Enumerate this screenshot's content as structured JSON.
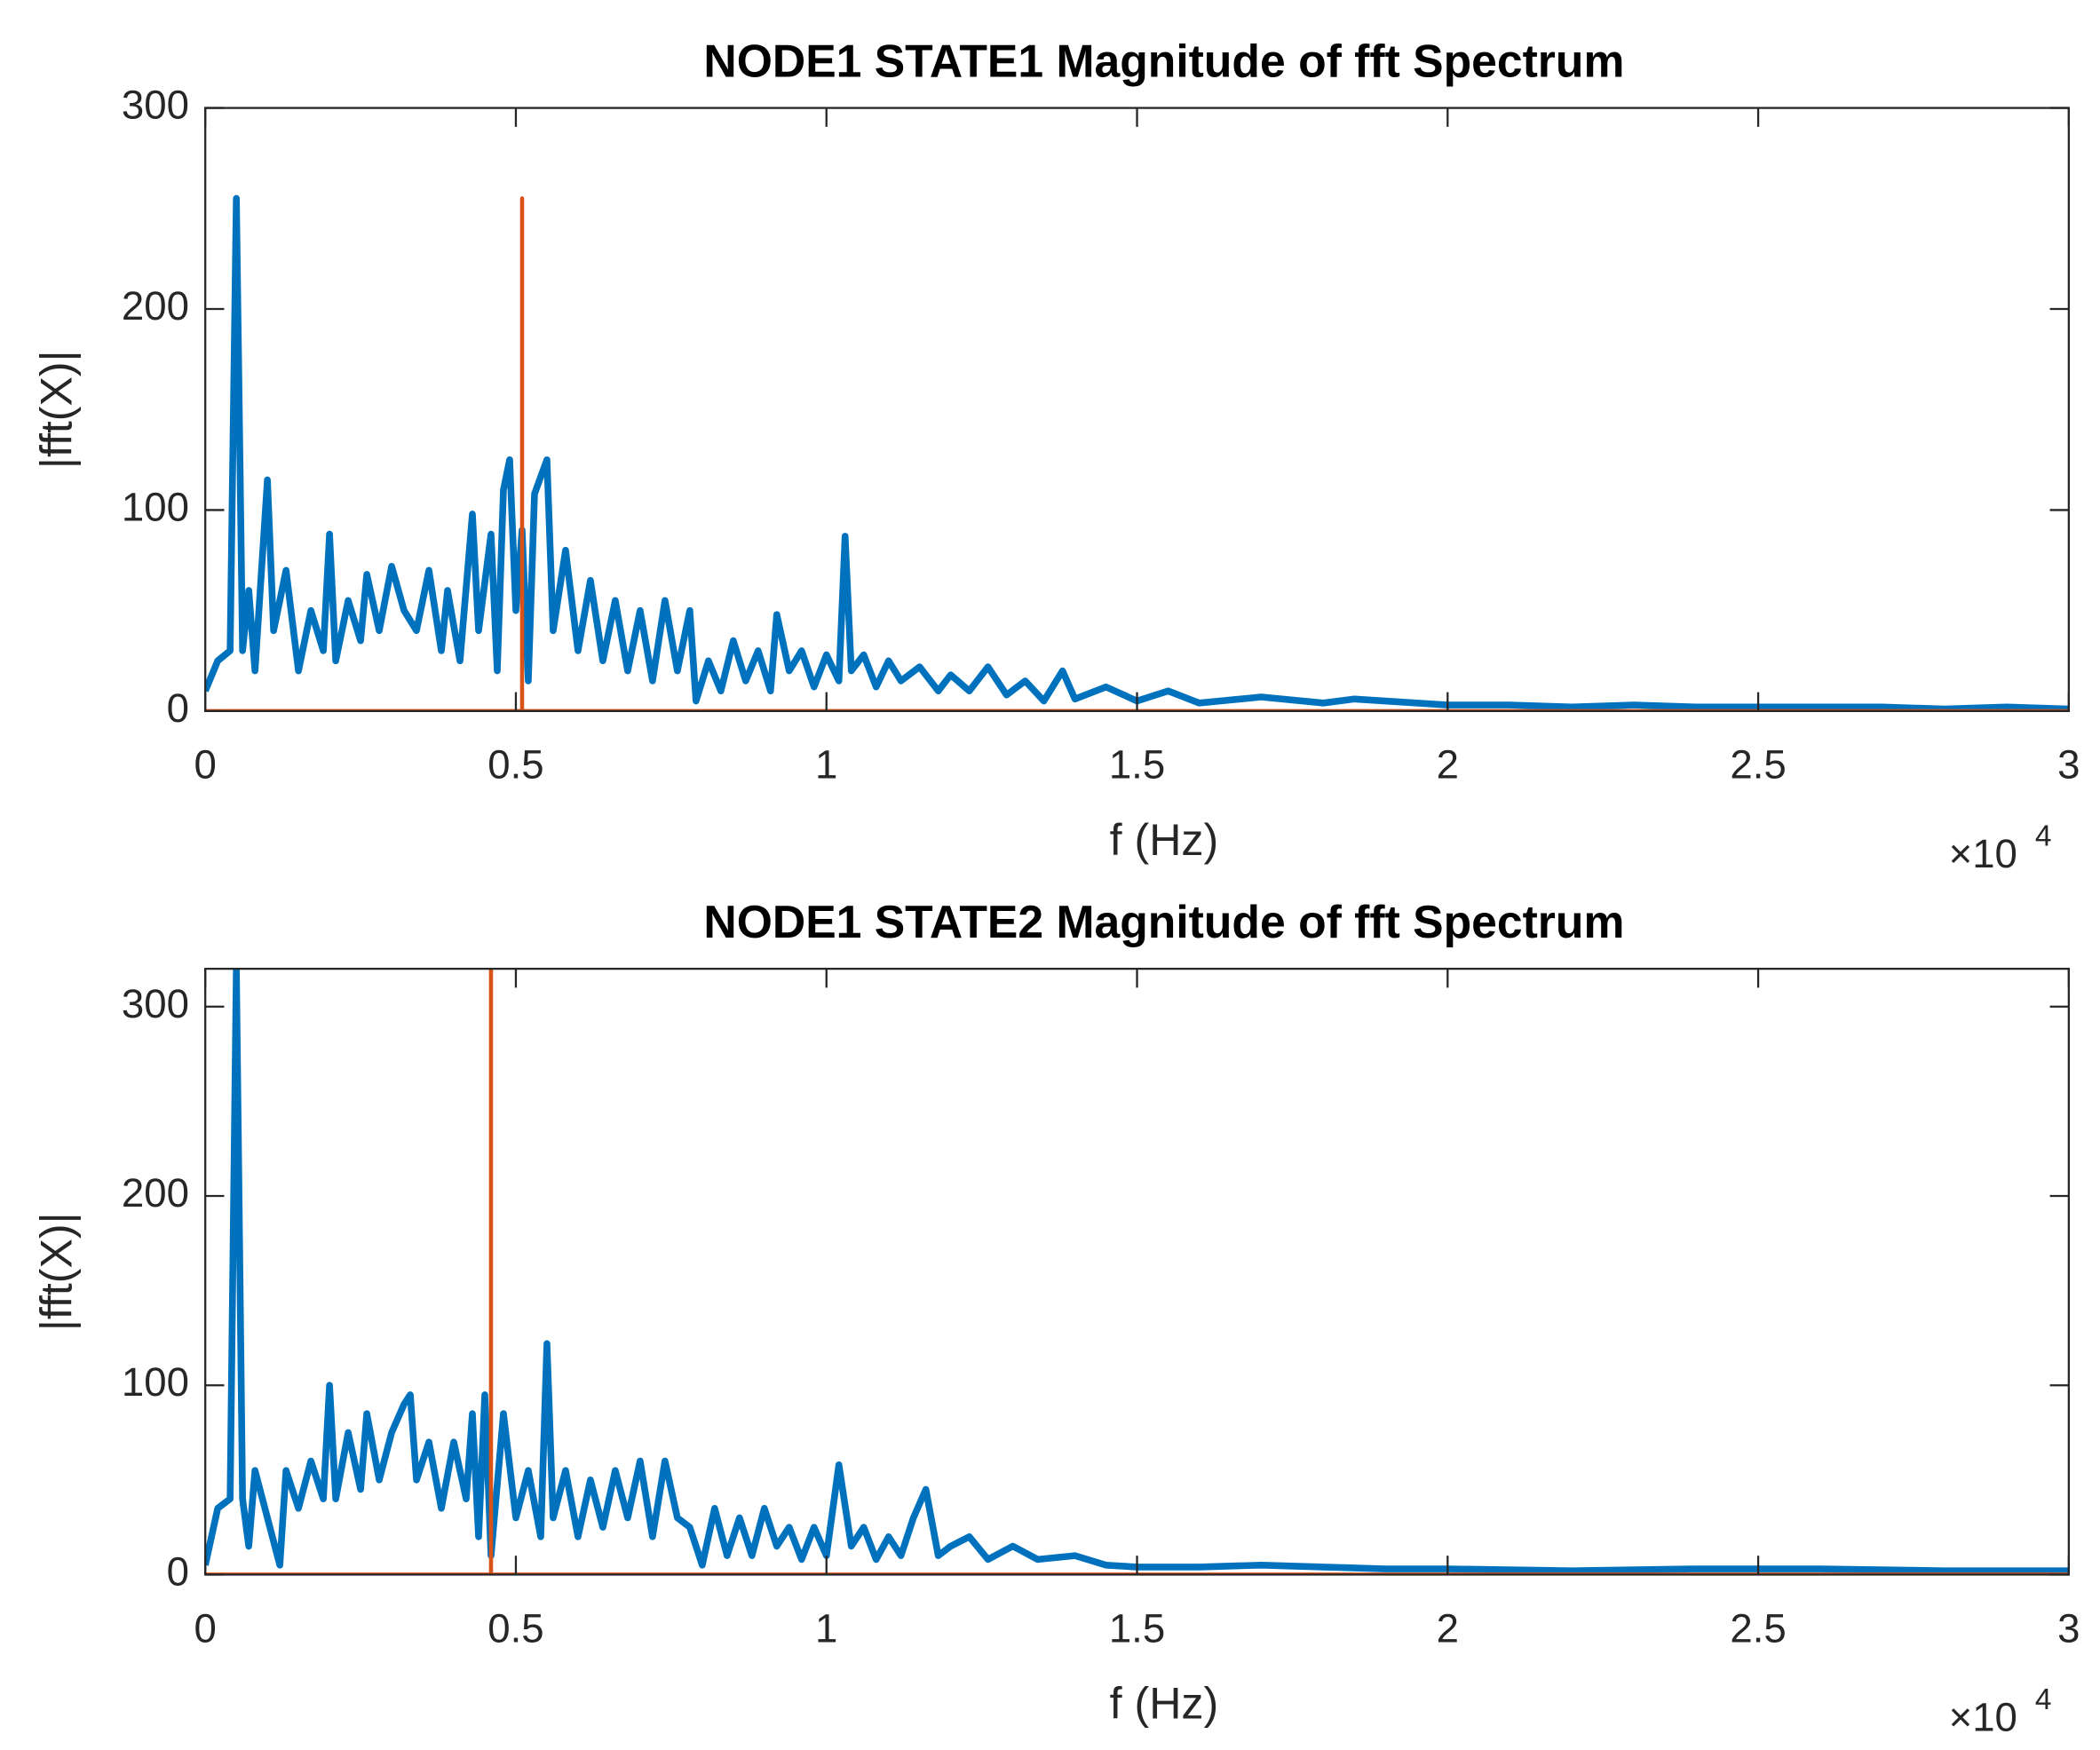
{
  "chart_data": [
    {
      "type": "line",
      "title": "NODE1 STATE1 Magnitude of fft Spectrum",
      "x_label": "f (Hz)",
      "y_label": "|fft(X)|",
      "x_multiplier": "×10",
      "x_exponent": "4",
      "xlim": [
        0,
        30000
      ],
      "ylim": [
        0,
        300
      ],
      "xticks": [
        0,
        {
          "value": 5000,
          "label": "0.5"
        },
        {
          "value": 10000,
          "label": "1"
        },
        {
          "value": 15000,
          "label": "1.5"
        },
        {
          "value": 20000,
          "label": "2"
        },
        {
          "value": 25000,
          "label": "2.5"
        },
        {
          "value": 30000,
          "label": "3"
        }
      ],
      "yticks": [
        0,
        100,
        200,
        300
      ],
      "series": [
        {
          "color": "#0072BD",
          "x": [
            0,
            200,
            400,
            500,
            600,
            700,
            800,
            1000,
            1100,
            1300,
            1500,
            1700,
            1900,
            2000,
            2100,
            2300,
            2500,
            2600,
            2800,
            3000,
            3200,
            3400,
            3600,
            3800,
            3900,
            4100,
            4300,
            4400,
            4600,
            4700,
            4800,
            4900,
            5000,
            5100,
            5200,
            5300,
            5500,
            5600,
            5800,
            6000,
            6200,
            6400,
            6600,
            6800,
            7000,
            7200,
            7400,
            7600,
            7800,
            7900,
            8100,
            8300,
            8500,
            8700,
            8900,
            9100,
            9200,
            9400,
            9600,
            9800,
            10000,
            10200,
            10300,
            10400,
            10600,
            10800,
            11000,
            11200,
            11500,
            11800,
            12000,
            12300,
            12600,
            12900,
            13200,
            13500,
            13800,
            14000,
            14500,
            15000,
            15500,
            16000,
            17000,
            18000,
            18500,
            19500,
            20000,
            21000,
            22000,
            23000,
            24000,
            25000,
            26000,
            27000,
            28000,
            29000,
            30000
          ],
          "values": [
            10,
            25,
            30,
            255,
            30,
            60,
            20,
            115,
            40,
            70,
            20,
            50,
            30,
            88,
            25,
            55,
            35,
            68,
            40,
            72,
            50,
            40,
            70,
            30,
            60,
            25,
            98,
            40,
            88,
            20,
            110,
            125,
            50,
            90,
            15,
            108,
            125,
            40,
            80,
            30,
            65,
            25,
            55,
            20,
            50,
            15,
            55,
            20,
            50,
            5,
            25,
            10,
            35,
            15,
            30,
            10,
            48,
            20,
            30,
            12,
            28,
            15,
            87,
            20,
            28,
            12,
            25,
            15,
            22,
            10,
            18,
            10,
            22,
            8,
            15,
            5,
            20,
            6,
            12,
            5,
            10,
            4,
            7,
            4,
            6,
            4,
            3,
            3,
            2,
            3,
            2,
            2,
            2,
            2,
            1,
            2,
            1
          ]
        },
        {
          "color": "#D95319",
          "x": [
            0,
            5100,
            5100,
            5100,
            30000
          ],
          "values": [
            0,
            0,
            255,
            0,
            0
          ]
        }
      ]
    },
    {
      "type": "line",
      "title": "NODE1 STATE2 Magnitude of fft Spectrum",
      "x_label": "f (Hz)",
      "y_label": "|fft(X)|",
      "x_multiplier": "×10",
      "x_exponent": "4",
      "xlim": [
        0,
        30000
      ],
      "ylim": [
        0,
        320
      ],
      "xticks": [
        0,
        {
          "value": 5000,
          "label": "0.5"
        },
        {
          "value": 10000,
          "label": "1"
        },
        {
          "value": 15000,
          "label": "1.5"
        },
        {
          "value": 20000,
          "label": "2"
        },
        {
          "value": 25000,
          "label": "2.5"
        },
        {
          "value": 30000,
          "label": "3"
        }
      ],
      "yticks": [
        0,
        100,
        200,
        300
      ],
      "series": [
        {
          "color": "#0072BD",
          "x": [
            0,
            200,
            400,
            500,
            600,
            700,
            800,
            1000,
            1200,
            1300,
            1500,
            1700,
            1900,
            2000,
            2100,
            2300,
            2500,
            2600,
            2800,
            3000,
            3200,
            3300,
            3400,
            3600,
            3800,
            4000,
            4200,
            4300,
            4400,
            4500,
            4600,
            4800,
            5000,
            5200,
            5400,
            5500,
            5600,
            5800,
            6000,
            6200,
            6400,
            6600,
            6800,
            7000,
            7200,
            7400,
            7600,
            7800,
            8000,
            8200,
            8400,
            8600,
            8800,
            9000,
            9200,
            9400,
            9600,
            9800,
            10000,
            10200,
            10400,
            10600,
            10800,
            11000,
            11200,
            11400,
            11600,
            11800,
            12000,
            12300,
            12600,
            13000,
            13400,
            14000,
            14500,
            15000,
            16000,
            17000,
            18000,
            19000,
            20000,
            22000,
            24000,
            26000,
            28000,
            30000
          ],
          "values": [
            5,
            35,
            40,
            320,
            40,
            15,
            55,
            30,
            5,
            55,
            35,
            60,
            40,
            100,
            40,
            75,
            45,
            85,
            50,
            75,
            90,
            95,
            50,
            70,
            35,
            70,
            40,
            85,
            20,
            95,
            10,
            85,
            30,
            55,
            20,
            122,
            30,
            55,
            20,
            50,
            25,
            55,
            30,
            60,
            20,
            60,
            30,
            25,
            5,
            35,
            10,
            30,
            10,
            35,
            15,
            25,
            8,
            25,
            10,
            58,
            15,
            25,
            8,
            20,
            10,
            30,
            45,
            10,
            15,
            20,
            8,
            15,
            8,
            10,
            5,
            4,
            4,
            5,
            4,
            3,
            3,
            2,
            3,
            3,
            2,
            2
          ]
        },
        {
          "color": "#D95319",
          "x": [
            0,
            4600,
            4600,
            4600,
            30000
          ],
          "values": [
            0,
            0,
            320,
            0,
            0
          ]
        }
      ]
    }
  ]
}
